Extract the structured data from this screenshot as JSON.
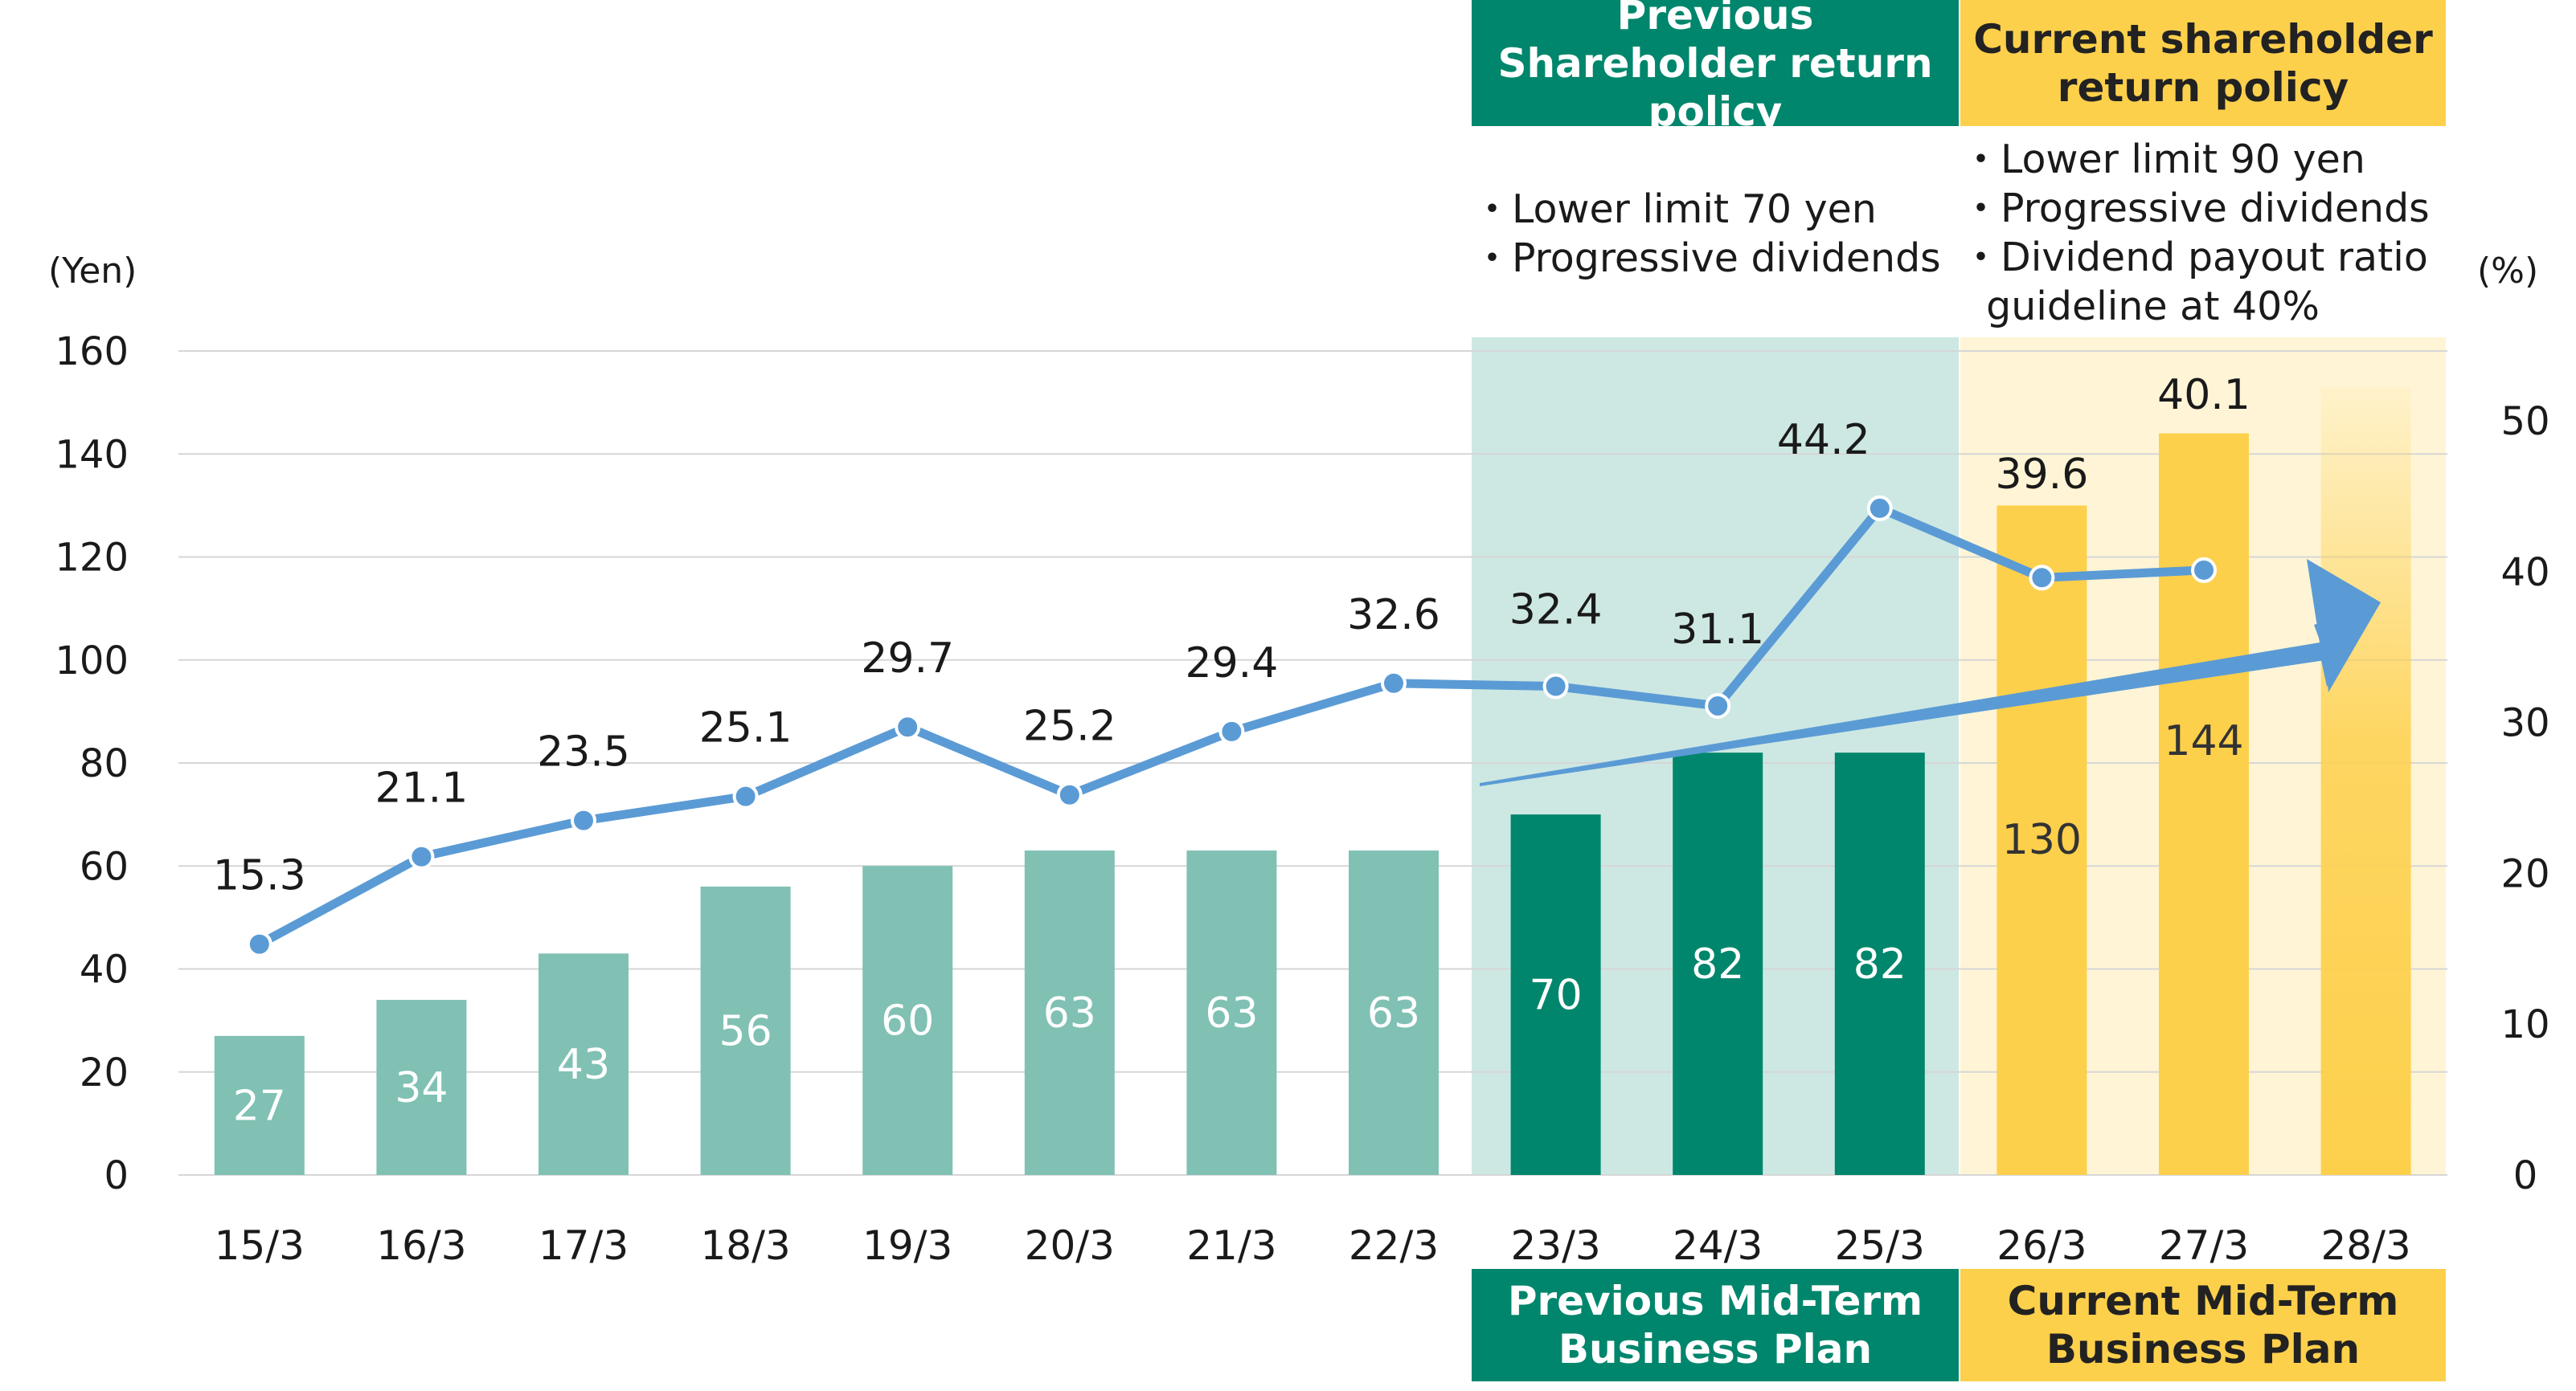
{
  "chart_data": {
    "type": "bar",
    "categories": [
      "15/3",
      "16/3",
      "17/3",
      "18/3",
      "19/3",
      "20/3",
      "21/3",
      "22/3",
      "23/3",
      "24/3",
      "25/3",
      "26/3",
      "27/3",
      "28/3"
    ],
    "series": [
      {
        "kind": "bar",
        "axis": "left",
        "values": [
          27,
          34,
          43,
          56,
          60,
          63,
          63,
          63,
          70,
          82,
          82,
          130,
          144,
          null
        ],
        "labels": [
          "27",
          "34",
          "43",
          "56",
          "60",
          "63",
          "63",
          "63",
          "70",
          "82",
          "82",
          "130",
          "144",
          ""
        ],
        "note_last": "28/3 bar drawn as a gradient indicating continued growth"
      },
      {
        "kind": "line",
        "axis": "right",
        "values": [
          15.3,
          21.1,
          23.5,
          25.1,
          29.7,
          25.2,
          29.4,
          32.6,
          32.4,
          31.1,
          44.2,
          39.6,
          40.1,
          null
        ],
        "labels": [
          "15.3",
          "21.1",
          "23.5",
          "25.1",
          "29.7",
          "25.2",
          "29.4",
          "32.6",
          "32.4",
          "31.1",
          "44.2",
          "39.6",
          "40.1",
          ""
        ]
      }
    ],
    "left_axis": {
      "unit": "(Yen)",
      "range": [
        0,
        160
      ],
      "ticks": [
        0,
        20,
        40,
        60,
        80,
        100,
        120,
        140,
        160
      ]
    },
    "right_axis": {
      "unit": "(%)",
      "range": [
        0,
        55
      ],
      "ticks": [
        0,
        10,
        20,
        30,
        40,
        50
      ]
    },
    "grid": true,
    "colors": {
      "bar_light": "#80c1b4",
      "bar_dark": "#00866c",
      "bar_yellow": "#fdd04c",
      "line": "#5b9bd5",
      "band_green": "#cde8e3",
      "band_yellow": "#fff5d6",
      "arrow": "#5b9bd5"
    }
  },
  "headers": {
    "previous_policy": "Previous Shareholder return policy",
    "current_policy": "Current shareholder return policy",
    "previous_plan": "Previous Mid-Term Business Plan",
    "current_plan": "Current Mid-Term Business Plan"
  },
  "previous_policy_bullets": [
    "・Lower limit 70 yen",
    "・Progressive dividends"
  ],
  "current_policy_bullets": [
    "・Lower limit 90 yen",
    "・Progressive dividends",
    "・Dividend payout ratio",
    "  guideline at 40%"
  ]
}
